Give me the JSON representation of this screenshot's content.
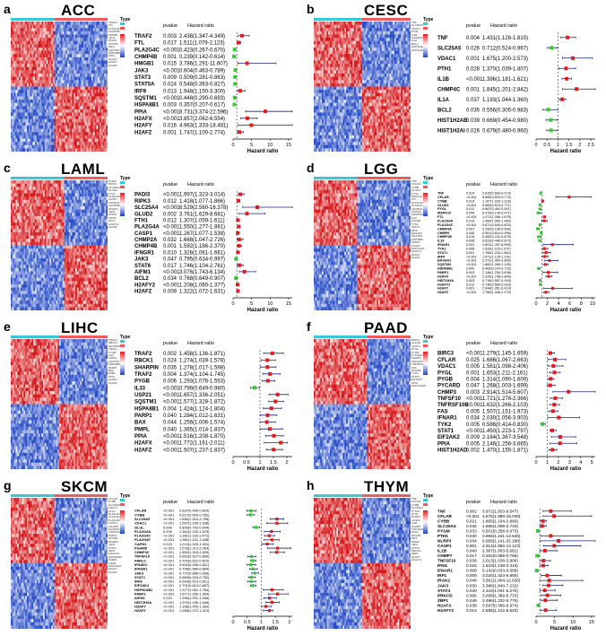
{
  "colors": {
    "high": "#d7191c",
    "mid": "#ffffff",
    "low": "#2b50c8",
    "annot_a": "#f05a5a",
    "annot_b": "#35c9d9",
    "risk": "#e41a1c",
    "protect": "#33cc33"
  },
  "common": {
    "type_label": "Type",
    "pvalue_header": "pvalue",
    "hr_header": "Hazard ratio",
    "xlabel": "Hazard ratio"
  },
  "chart_data": [
    {
      "type": "forest",
      "letter": "a",
      "title": "ACC",
      "xticks": [
        0,
        5,
        10,
        15
      ],
      "xlim": [
        0,
        16
      ],
      "genes": [
        "TRAF2",
        "FTL",
        "PLA2G4C",
        "CHMP4B",
        "HMGB1",
        "JAK3",
        "STAT3",
        "STAT5A",
        "IRF9",
        "SQSTM1",
        "HSPA8B1",
        "PPIA",
        "H2AFX",
        "H2AFY",
        "H2AFZ"
      ],
      "pvalues": [
        "0.003",
        "0.017",
        "<0.001",
        "0.001",
        "0.015",
        "<0.001",
        "0.009",
        "0.024",
        "0.013",
        "<0.001",
        "0.003",
        "<0.001",
        "<0.001",
        "0.016",
        "0.001"
      ],
      "hr": [
        2.438,
        1.511,
        0.423,
        0.239,
        3.786,
        0.604,
        0.509,
        0.548,
        1.948,
        0.448,
        0.357,
        8.731,
        3.857,
        4.963,
        1.747
      ],
      "lo": [
        1.347,
        1.079,
        0.267,
        0.142,
        1.291,
        0.463,
        0.281,
        0.363,
        1.15,
        0.29,
        0.207,
        3.374,
        2.062,
        1.333,
        1.1
      ],
      "hi": [
        4.349,
        2.123,
        0.67,
        0.614,
        11.607,
        0.789,
        0.863,
        0.827,
        3.3,
        0.693,
        0.617,
        22.596,
        6.554,
        18.481,
        2.774
      ],
      "hr_text": [
        "2.438(1.347-4.349)",
        "1.511(1.079-2.123)",
        "0.423(0.267-0.670)",
        "0.239(0.142-0.614)",
        "3.786(1.291-11.607)",
        "0.604(0.463-0.789)",
        "0.509(0.281-0.863)",
        "0.548(0.363-0.827)",
        "1.948(1.150-3.300)",
        "0.448(0.290-0.693)",
        "0.357(0.207-0.617)",
        "8.731(3.374-22.596)",
        "3.857(2.062-6.554)",
        "4.963(1.333-18.481)",
        "1.747(1.100-2.774)"
      ]
    },
    {
      "type": "forest",
      "letter": "b",
      "title": "CESC",
      "xticks": [
        0.0,
        0.5,
        1.0,
        1.5,
        2.0,
        2.5
      ],
      "xlim": [
        0,
        2.7
      ],
      "genes": [
        "TNF",
        "SLC25A5",
        "VDAC1",
        "PTH1",
        "IL1B",
        "CHMP4C",
        "IL1A",
        "BCL2",
        "HIST1H2AB",
        "HIST1H2AI"
      ],
      "pvalues": [
        "0.004",
        "0.026",
        "0.001",
        "0.028",
        "<0.001",
        "0.001",
        "0.037",
        "0.035",
        "0.039",
        "0.026"
      ],
      "hr": [
        1.431,
        0.712,
        1.675,
        1.37,
        1.396,
        1.845,
        1.193,
        0.556,
        0.669,
        0.679
      ],
      "lo": [
        1.126,
        0.524,
        1.2,
        1.039,
        1.181,
        1.201,
        1.044,
        0.305,
        0.454,
        0.48
      ],
      "hi": [
        1.81,
        0.967,
        2.573,
        1.807,
        1.621,
        2.842,
        1.36,
        0.983,
        0.98,
        0.96
      ],
      "hr_text": [
        "1.431(1.126-1.810)",
        "0.712(0.524-0.967)",
        "1.675(1.200-2.573)",
        "1.370(1.039-1.807)",
        "1.396(1.181-1.621)",
        "1.845(1.201-2.842)",
        "1.193(1.044-1.360)",
        "0.556(0.305-0.983)",
        "0.669(0.454-0.980)",
        "0.679(0.480-0.960)"
      ]
    },
    {
      "type": "forest",
      "letter": "c",
      "title": "LAML",
      "xticks": [
        0,
        5,
        10,
        15
      ],
      "xlim": [
        0,
        16
      ],
      "genes": [
        "PADI3",
        "RIPK3",
        "SLC25A4",
        "GLUD2",
        "FTH1",
        "PLA2G4A",
        "CASP1",
        "CHMP2A",
        "CHMP4B",
        "IFNGR1",
        "JAK3",
        "STAT6",
        "AIFM1",
        "BCL2",
        "H2AFY2",
        "H2AFZ"
      ],
      "pvalues": [
        "<0.001",
        "0.012",
        "<0.001",
        "0.002",
        "0.012",
        "<0.001",
        "<0.001",
        "0.032",
        "0.001",
        "0.010",
        "0.047",
        "0.017",
        "<0.001",
        "0.034",
        "<0.001",
        "0.009"
      ],
      "hr": [
        1.997,
        1.418,
        6.529,
        3.761,
        1.307,
        1.55,
        1.267,
        1.668,
        1.592,
        1.328,
        0.795,
        1.746,
        3.076,
        0.768,
        1.208,
        1.322
      ],
      "lo": [
        1.323,
        1.077,
        2.56,
        1.629,
        1.059,
        1.277,
        1.077,
        1.047,
        1.186,
        1.061,
        0.634,
        1.104,
        1.743,
        0.649,
        1.06,
        1.072
      ],
      "hi": [
        3.014,
        1.866,
        16.378,
        8.681,
        1.611,
        1.881,
        1.538,
        2.726,
        2.37,
        1.661,
        0.997,
        2.761,
        6.134,
        0.907,
        1.377,
        1.631
      ],
      "hr_text": [
        "1.997(1.323-3.014)",
        "1.418(1.077-1.866)",
        "6.529(2.560-16.378)",
        "3.761(1.629-8.681)",
        "1.307(1.059-1.611)",
        "1.550(1.277-1.881)",
        "1.267(1.077-1.538)",
        "1.668(1.047-2.726)",
        "1.592(1.186-2.370)",
        "1.328(1.061-1.661)",
        "0.795(0.634-0.997)",
        "1.746(1.104-2.761)",
        "3.076(1.743-6.134)",
        "0.768(0.649-0.907)",
        "1.208(1.060-1.377)",
        "1.322(1.072-1.631)"
      ]
    },
    {
      "type": "forest",
      "letter": "d",
      "title": "LGG",
      "xticks": [
        0,
        2,
        4,
        6,
        8,
        10
      ],
      "xlim": [
        0,
        10.5
      ],
      "genes": [
        "TNF",
        "CFLAR",
        "CYBB",
        "GLUD1",
        "PYGL",
        "MAPK10",
        "FTL",
        "PLA2G4A",
        "PLA2G4C",
        "CHMP4A",
        "CHMP6",
        "CHMP1B",
        "IL33",
        "IFNAR1",
        "TYK2",
        "STAT1",
        "IRF5",
        "EIF2AK2",
        "SQSTM1",
        "HSPA8B1",
        "PARP1",
        "H2AFX",
        "HIST1H2A",
        "H2AFY2",
        "H2AFY",
        "H2AFZ"
      ],
      "pvalues": [
        "0.024",
        "<0.001",
        "0.013",
        "<0.001",
        "0.011",
        "0.044",
        "<0.001",
        "0.019",
        "<0.001",
        "0.007",
        "0.040",
        "0.019",
        "0.006",
        "0.001",
        "0.008",
        "0.001",
        "<0.001",
        "<0.001",
        "<0.001",
        "0.002",
        "0.003",
        "<0.001",
        "0.003",
        "0.012",
        "0.001",
        "<0.001"
      ],
      "hr": [
        0.815,
        5.855,
        1.167,
        0.663,
        0.667,
        0.379,
        1.471,
        1.454,
        0.671,
        0.25,
        0.901,
        0.46,
        0.623,
        2.891,
        1.52,
        1.766,
        1.571,
        2.371,
        1.682,
        0.4,
        2.146,
        2.229,
        0.715,
        0.735,
        2.944,
        1.75
      ],
      "lo": [
        0.683,
        3.529,
        1.033,
        0.57,
        0.494,
        0.149,
        1.289,
        1.063,
        0.54,
        0.105,
        0.814,
        0.241,
        0.445,
        1.267,
        1.115,
        1.218,
        1.125,
        1.454,
        1.289,
        0.224,
        1.2,
        1.746,
        0.557,
        0.58,
        1.351,
        1.346
      ],
      "hi": [
        0.973,
        9.775,
        1.318,
        0.771,
        0.901,
        0.971,
        1.678,
        1.989,
        0.833,
        0.596,
        0.996,
        0.879,
        0.873,
        6.599,
        2.072,
        2.562,
        2.191,
        3.866,
        2.195,
        0.715,
        3.838,
        2.846,
        0.918,
        0.933,
        6.414,
        2.275
      ],
      "hr_text": [
        "0.815(0.683-0.973)",
        "5.855(3.529-9.775)",
        "1.167(1.033-1.318)",
        "0.663(0.570-0.771)",
        "0.667(0.494-0.901)",
        "0.379(0.149-0.971)",
        "1.471(1.289-1.678)",
        "1.454(1.063-1.989)",
        "0.671(0.540-0.833)",
        "0.250(0.105-0.596)",
        "0.901(0.814-0.996)",
        "0.460(0.241-0.879)",
        "0.623(0.445-0.873)",
        "2.891(1.267-6.599)",
        "1.520(1.115-2.072)",
        "1.766(1.218-2.562)",
        "1.571(1.125-2.191)",
        "2.371(1.454-3.866)",
        "1.682(1.289-2.195)",
        "0.400(0.224-0.715)",
        "2.146(1.200-3.838)",
        "2.229(1.746-2.846)",
        "0.715(0.557-0.918)",
        "0.735(0.580-0.933)",
        "2.944(1.351-6.414)",
        "1.750(1.346-2.275)"
      ]
    },
    {
      "type": "forest",
      "letter": "e",
      "title": "LIHC",
      "xticks": [
        0.0,
        0.5,
        1.0,
        1.5,
        2.0
      ],
      "xlim": [
        0,
        2.2
      ],
      "genes": [
        "TRAF2",
        "RBCK1",
        "SHARPIN",
        "TRAF2",
        "PYGB",
        "IL33",
        "USP21",
        "SQSTM1",
        "HSPA8B1",
        "PARP1",
        "BAX",
        "PMPL",
        "PPIA",
        "H2AFX",
        "H2AFZ"
      ],
      "pvalues": [
        "0.002",
        "0.024",
        "0.035",
        "0.004",
        "0.006",
        "<0.001",
        "<0.001",
        "<0.001",
        "0.004",
        "0.040",
        "0.044",
        "0.040",
        "<0.001",
        "<0.001",
        "<0.001"
      ],
      "hr": [
        1.458,
        1.274,
        1.278,
        1.374,
        1.293,
        0.799,
        1.657,
        1.577,
        1.424,
        1.284,
        1.256,
        1.365,
        1.516,
        1.772,
        1.507
      ],
      "lo": [
        1.136,
        1.039,
        1.017,
        1.104,
        1.076,
        0.649,
        1.336,
        1.328,
        1.124,
        1.012,
        1.006,
        1.014,
        1.208,
        1.161,
        1.237
      ],
      "hi": [
        1.871,
        1.578,
        1.598,
        1.745,
        1.553,
        0.98,
        2.051,
        1.872,
        1.804,
        1.631,
        1.574,
        1.837,
        1.87,
        2.011,
        1.837
      ],
      "hr_text": [
        "1.458(1.136-1.871)",
        "1.274(1.039-1.578)",
        "1.278(1.017-1.598)",
        "1.374(1.104-1.745)",
        "1.293(1.076-1.553)",
        "0.799(0.649-0.980)",
        "1.657(1.336-2.051)",
        "1.577(1.328-1.872)",
        "1.424(1.124-1.804)",
        "1.284(1.012-1.631)",
        "1.256(1.006-1.574)",
        "1.365(1.014-1.837)",
        "1.516(1.208-1.870)",
        "1.772(1.161-2.011)",
        "1.507(1.237-1.837)"
      ]
    },
    {
      "type": "forest",
      "letter": "f",
      "title": "PAAD",
      "xticks": [
        0,
        1,
        2,
        3,
        4,
        5
      ],
      "xlim": [
        0,
        5.3
      ],
      "genes": [
        "BIRC3",
        "CFLAR",
        "VDAC1",
        "PYGL",
        "PYGB",
        "PYCARD",
        "CHMP3",
        "TNFSF10",
        "TNFRSF10B",
        "FAS",
        "IFNAR1",
        "TYK2",
        "STAT1",
        "EIF2AK2",
        "PPIA",
        "HIST1H2AD"
      ],
      "pvalues": [
        "<0.001",
        "0.025",
        "0.005",
        "0.001",
        "0.004",
        "0.047",
        "0.003",
        "<0.001",
        "<0.001",
        "0.005",
        "0.034",
        "0.005",
        "<0.001",
        "0.009",
        "0.005",
        "0.002"
      ],
      "hr": [
        1.279,
        1.686,
        1.561,
        1.653,
        1.314,
        1.268,
        2.914,
        1.721,
        1.632,
        1.507,
        2.03,
        0.586,
        1.45,
        2.164,
        2.146,
        1.47
      ],
      "lo": [
        1.145,
        1.067,
        1.098,
        1.211,
        1.09,
        1.003,
        1.514,
        1.278,
        1.266,
        1.151,
        1.056,
        0.414,
        1.223,
        1.367,
        1.256,
        1.155
      ],
      "hi": [
        1.659,
        2.663,
        2.406,
        2.161,
        1.6,
        1.699,
        5.607,
        2.366,
        2.103,
        1.973,
        3.903,
        0.83,
        1.797,
        3.548,
        3.665,
        1.871
      ],
      "hr_text": [
        "1.279(1.145-1.659)",
        "1.686(1.067-2.663)",
        "1.561(1.098-2.406)",
        "1.653(1.211-2.161)",
        "1.314(1.090-1.600)",
        "1.268(1.003-1.699)",
        "2.914(1.514-5.607)",
        "1.721(1.278-2.366)",
        "1.632(1.266-2.103)",
        "1.507(1.151-1.973)",
        "2.030(1.056-3.903)",
        "0.586(0.414-0.830)",
        "1.450(1.223-1.797)",
        "2.164(1.367-3.548)",
        "2.146(1.256-3.665)",
        "1.470(1.155-1.871)"
      ]
    },
    {
      "type": "forest",
      "letter": "g",
      "title": "SKCM",
      "xticks": [
        0.0,
        0.5,
        1.0,
        1.5,
        2.0
      ],
      "xlim": [
        0,
        2.1
      ],
      "genes": [
        "CFLAR",
        "CYBB",
        "SLC25A5",
        "VDAC1",
        "GLUL",
        "PLA2G4A",
        "PLA2G4C",
        "PLA2G4F",
        "CAPN1",
        "PGAM5",
        "CHMP4C",
        "TNFSF10",
        "PARL0",
        "IFNAR1",
        "IFNGR1",
        "JAK3",
        "STAT1",
        "IRF8",
        "EIF2AK2",
        "HSP90AB1",
        "PARP1",
        "AIFM1",
        "HIST2H2A",
        "H2AFY",
        "H2AFZ"
      ],
      "pvalues": [
        "<0.001",
        "<0.001",
        "<0.001",
        "<0.001",
        "0.006",
        "0.005",
        "<0.001",
        "<0.001",
        "0.023",
        "<0.001",
        "<0.001",
        "<0.001",
        "<0.001",
        "<0.001",
        "<0.001",
        "<0.001",
        "<0.001",
        "<0.001",
        "<0.001",
        "<0.001",
        "<0.001",
        "0.003",
        "<0.001",
        "<0.001",
        "<0.001"
      ],
      "hr": [
        0.637,
        0.617,
        1.556,
        1.557,
        0.809,
        1.364,
        1.281,
        1.381,
        1.213,
        1.578,
        1.55,
        0.652,
        0.7,
        0.632,
        0.708,
        0.772,
        0.65,
        0.644,
        0.701,
        1.377,
        1.577,
        1.296,
        1.379,
        1.168,
        1.288
      ],
      "lo": [
        0.49,
        0.5,
        1.319,
        1.195,
        0.702,
        1.109,
        1.116,
        1.101,
        1.029,
        1.212,
        1.315,
        0.527,
        0.622,
        0.496,
        0.58,
        0.658,
        0.543,
        0.513,
        0.613,
        1.061,
        1.256,
        1.091,
        1.156,
        1.0,
        1.072
      ],
      "hi": [
        0.824,
        0.762,
        1.796,
        1.938,
        0.944,
        1.675,
        1.472,
        1.638,
        1.431,
        2.054,
        1.829,
        0.806,
        0.81,
        0.811,
        0.864,
        0.906,
        0.782,
        0.811,
        0.807,
        1.784,
        1.954,
        1.536,
        1.646,
        1.363,
        1.41
      ],
      "hr_text": [
        "0.637(0.490-0.824)",
        "0.617(0.500-0.762)",
        "1.556(1.319-1.796)",
        "1.557(1.195-1.938)",
        "0.809(0.702-0.944)",
        "1.364(1.109-1.675)",
        "1.281(1.116-1.472)",
        "1.381(1.101-1.638)",
        "1.213(1.029-1.431)",
        "1.578(1.212-2.054)",
        "1.550(1.315-1.829)",
        "0.652(0.527-0.806)",
        "0.700(0.622-0.810)",
        "0.632(0.496-0.811)",
        "0.708(0.580-0.864)",
        "0.772(0.658-0.906)",
        "0.650(0.543-0.782)",
        "0.644(0.513-0.811)",
        "0.701(0.613-0.807)",
        "1.377(1.061-1.784)",
        "1.577(1.256-1.954)",
        "1.296(1.091-1.536)",
        "1.379(1.156-1.646)",
        "1.168(1.000-1.363)",
        "1.288(1.072-1.410)"
      ]
    },
    {
      "type": "forest",
      "letter": "h",
      "title": "THYM",
      "xticks": [
        0,
        5,
        10,
        15
      ],
      "xlim": [
        0,
        16
      ],
      "genes": [
        "TNF",
        "CFLAR",
        "CYBB",
        "SLC25A4",
        "PYGM",
        "PTH1",
        "NLRP3",
        "CASP1",
        "IL1B",
        "CHMP7",
        "TNFSF10",
        "IFNG",
        "IFNAR1",
        "IRF1",
        "IRAK2",
        "JAK3",
        "STAT4",
        "PRKCD",
        "ZBP1",
        "H2AFX",
        "H2AFY2"
      ],
      "pvalues": [
        "0.002",
        "<0.001",
        "0.021",
        "0.046",
        "0.033",
        "0.030",
        "0.034",
        "0.001",
        "0.049",
        "0.017",
        "0.038",
        "0.015",
        "0.008",
        "0.009",
        "0.048",
        "0.030",
        "0.040",
        "0.006",
        "0.049",
        "0.038",
        "0.014"
      ],
      "hr": [
        3.972,
        4.876,
        1.865,
        1.656,
        0.501,
        3.966,
        6.059,
        4.914,
        2.387,
        0.264,
        2.013,
        1.943,
        0.142,
        3.02,
        3.561,
        3.386,
        2.343,
        3.058,
        2.496,
        0.597,
        2.585
      ],
      "lo": [
        1.833,
        1.88,
        1.104,
        1.009,
        0.258,
        1.241,
        1.141,
        1.992,
        1.003,
        0.089,
        1.038,
        1.138,
        0.033,
        1.324,
        1.004,
        1.84,
        1.041,
        1.389,
        1.232,
        0.366,
        1.212
      ],
      "hi": [
        9.547,
        15.039,
        2.86,
        2.734,
        0.973,
        12.626,
        32.18,
        12.123,
        5.681,
        0.786,
        3.906,
        3.316,
        0.609,
        6.89,
        12.63,
        7.232,
        5.276,
        6.733,
        5.776,
        0.974,
        5.52
      ],
      "hr_text": [
        "3.972(1.833-9.547)",
        "4.876(1.880-15.039)",
        "1.865(1.104-2.860)",
        "1.656(1.009-2.734)",
        "0.501(0.258-0.973)",
        "3.966(1.241-12.626)",
        "6.059(1.141-32.180)",
        "4.914(1.992-12.123)",
        "2.387(1.003-5.681)",
        "0.264(0.089-0.786)",
        "2.013(1.038-3.906)",
        "1.943(1.138-3.316)",
        "0.142(0.033-0.609)",
        "3.020(1.324-6.890)",
        "3.561(1.004-12.630)",
        "3.386(1.840-7.232)",
        "2.343(1.041-5.276)",
        "3.058(1.389-6.733)",
        "2.496(1.232-5.776)",
        "0.597(0.366-0.974)",
        "2.585(1.212-5.520)"
      ]
    }
  ]
}
